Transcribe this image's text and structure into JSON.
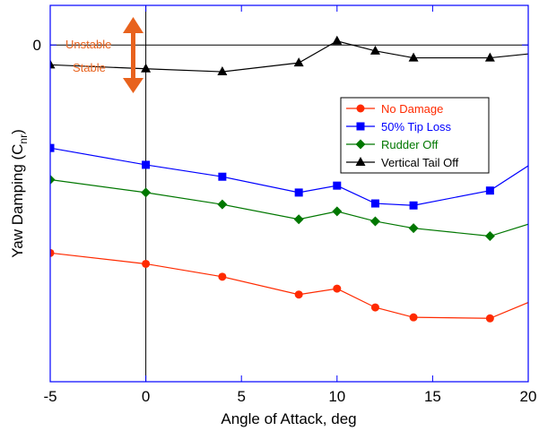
{
  "chart_data": {
    "type": "line",
    "title": "",
    "xlabel": "Angle of Attack, deg",
    "ylabel_main": "Yaw Damping (C",
    "ylabel_sub": "nr",
    "ylabel_close": ")",
    "xlim": [
      -5,
      20
    ],
    "ylim": [
      -0.34,
      0.04
    ],
    "xticks": [
      -5,
      0,
      5,
      10,
      15,
      20
    ],
    "yticks": [
      0
    ],
    "grid": false,
    "legend_position": "upper-right",
    "reference_lines": {
      "x": 0,
      "y": 0
    },
    "annotations": {
      "unstable": "Unstable",
      "stable": "Stable",
      "color": "#e8621d"
    },
    "series": [
      {
        "name": "No Damage",
        "color": "#ff2a00",
        "marker": "circle",
        "x": [
          -5,
          0,
          4,
          8,
          10,
          12,
          14,
          18,
          20
        ],
        "y": [
          -0.21,
          -0.221,
          -0.234,
          -0.252,
          -0.246,
          -0.265,
          -0.275,
          -0.276,
          -0.26
        ]
      },
      {
        "name": "50% Tip Loss",
        "color": "#0000ff",
        "marker": "square",
        "x": [
          -5,
          0,
          4,
          8,
          10,
          12,
          14,
          18,
          20
        ],
        "y": [
          -0.104,
          -0.121,
          -0.133,
          -0.149,
          -0.142,
          -0.16,
          -0.162,
          -0.147,
          -0.122
        ]
      },
      {
        "name": "Rudder Off",
        "color": "#007700",
        "marker": "diamond",
        "x": [
          -5,
          0,
          4,
          8,
          10,
          12,
          14,
          18,
          20
        ],
        "y": [
          -0.136,
          -0.149,
          -0.161,
          -0.176,
          -0.168,
          -0.178,
          -0.185,
          -0.193,
          -0.181
        ]
      },
      {
        "name": "Vertical Tail Off",
        "color": "#000000",
        "marker": "triangle",
        "x": [
          -5,
          0,
          4,
          8,
          10,
          12,
          14,
          18,
          20
        ],
        "y": [
          -0.02,
          -0.024,
          -0.027,
          -0.018,
          0.004,
          -0.006,
          -0.013,
          -0.013,
          -0.009
        ]
      }
    ]
  }
}
